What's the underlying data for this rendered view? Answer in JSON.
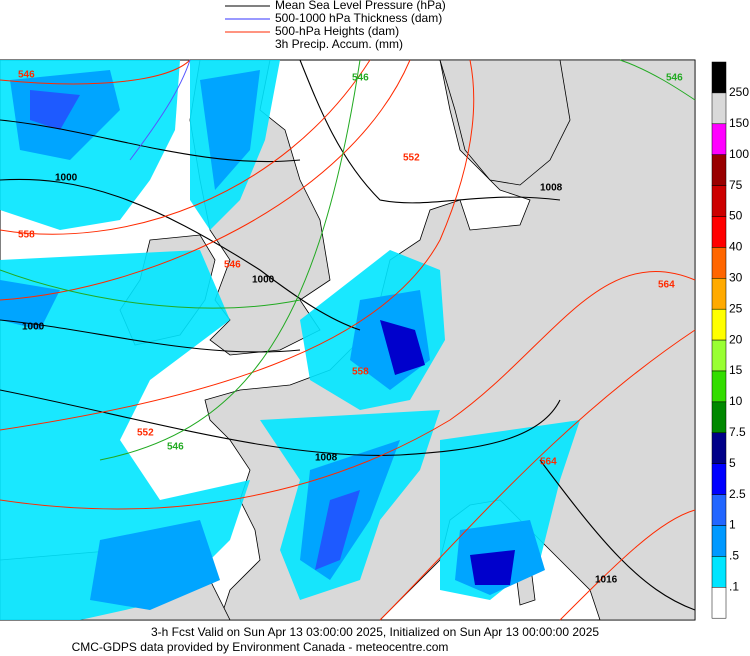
{
  "legend": {
    "items": [
      "Mean Sea Level Pressure (hPa)",
      "500-1000 hPa Thickness (dam)",
      "500-hPa Heights (dam)",
      "3h Precip. Accum. (mm)"
    ]
  },
  "colorbar": {
    "labels": [
      "250",
      "150",
      "100",
      "75",
      "50",
      "40",
      "30",
      "25",
      "20",
      "15",
      "10",
      "7.5",
      "5",
      "2.5",
      "1",
      ".5",
      ".1"
    ]
  },
  "map": {
    "contour_labels": [
      "546",
      "546",
      "546",
      "1000",
      "558",
      "552",
      "1008",
      "546",
      "1000",
      "1000",
      "564",
      "558",
      "552",
      "546",
      "1008",
      "564",
      "1016"
    ]
  },
  "footer": {
    "lines": [
      "3-h Fcst Valid on Sun Apr 13 03:00:00 2025, Initialized on Sun Apr 13 00:00:00 2025",
      "CMC-GDPS data provided by Environment Canada - meteocentre.com"
    ]
  }
}
